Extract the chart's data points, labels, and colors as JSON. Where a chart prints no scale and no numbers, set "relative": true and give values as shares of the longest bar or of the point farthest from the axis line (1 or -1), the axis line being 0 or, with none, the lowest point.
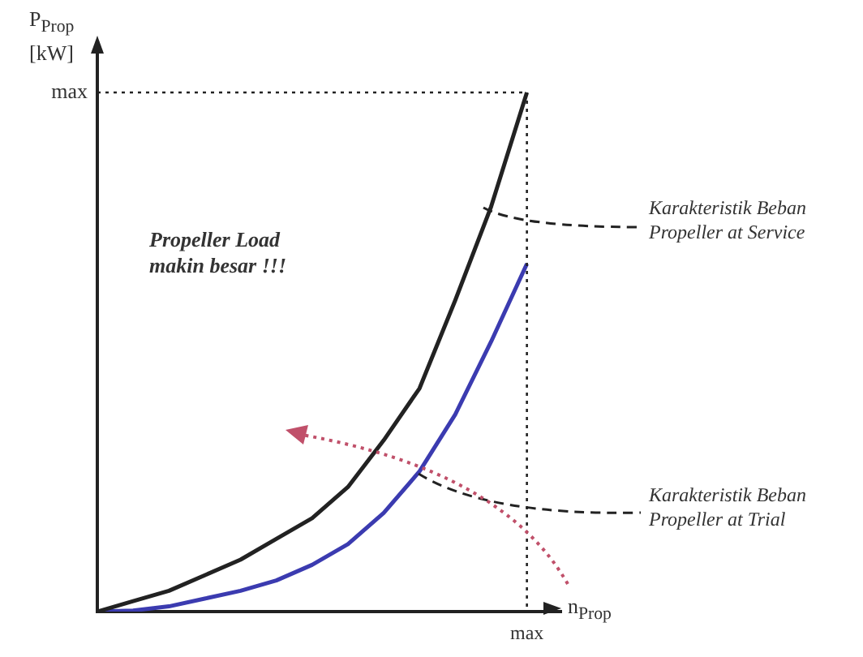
{
  "chart_data": {
    "type": "line",
    "relative": true,
    "xlabel": "n$_{Prop}$",
    "ylabel": "P$_{Prop}$ [kW]",
    "categories": [
      null,
      null,
      null,
      null,
      null,
      null,
      null,
      null,
      null,
      null,
      null,
      null,
      null
    ],
    "series": [
      {
        "name": "Karakteristik Beban Propeller at Service",
        "color": "#222222",
        "values": [
          0,
          0.02,
          0.04,
          0.07,
          0.1,
          0.14,
          0.18,
          0.24,
          0.33,
          0.43,
          0.6,
          0.78,
          1
        ]
      },
      {
        "name": "Karakteristik Beban Propeller at Trial",
        "color": "#3b3bb0",
        "values": [
          0,
          0.002,
          0.01,
          0.025,
          0.04,
          0.06,
          0.09,
          0.13,
          0.19,
          0.27,
          0.38,
          0.52,
          0.67
        ]
      }
    ],
    "annotations": [
      "Propeller Load makin besar !!!",
      "max",
      "max"
    ],
    "legend": false,
    "marker": "none",
    "line_style": "solid"
  }
}
